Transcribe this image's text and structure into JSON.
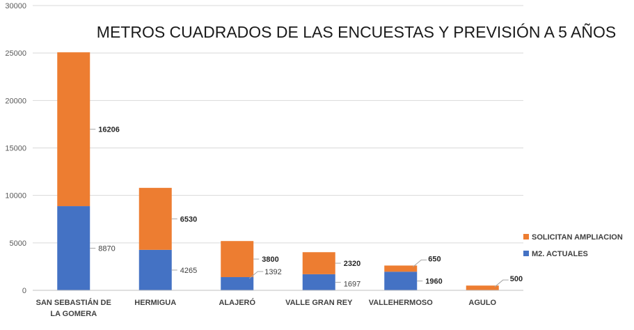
{
  "chart_data": {
    "type": "bar",
    "stacked": true,
    "title": "METROS CUADRADOS DE LAS ENCUESTAS Y PREVISIÓN A 5 AÑOS",
    "xlabel": "",
    "ylabel": "",
    "ylim": [
      0,
      30000
    ],
    "yticks": [
      "0",
      "5000",
      "10000",
      "15000",
      "20000",
      "25000",
      "30000"
    ],
    "grid": true,
    "legend_position": "right",
    "categories": [
      [
        "SAN SEBASTIÁN DE",
        "LA GOMERA"
      ],
      [
        "HERMIGUA"
      ],
      [
        "ALAJERÓ"
      ],
      [
        "VALLE GRAN REY"
      ],
      [
        "VALLEHERMOSO"
      ],
      [
        "AGULO"
      ]
    ],
    "series": [
      {
        "name": "M2. ACTUALES",
        "color": "#4472C4",
        "values": [
          8870,
          4265,
          1392,
          1697,
          1960,
          0
        ],
        "labels": [
          "8870",
          "4265",
          "1392",
          "1697",
          "1960",
          ""
        ],
        "label_bold": [
          false,
          false,
          false,
          false,
          true,
          false
        ]
      },
      {
        "name": "SOLICITAN AMPLIACION",
        "color": "#ED7D31",
        "values": [
          16206,
          6530,
          3800,
          2320,
          650,
          500
        ],
        "labels": [
          "16206",
          "6530",
          "3800",
          "2320",
          "650",
          "500"
        ],
        "label_bold": [
          true,
          true,
          true,
          true,
          true,
          true
        ]
      }
    ],
    "legend": [
      {
        "name": "SOLICITAN AMPLIACION",
        "color": "#ED7D31"
      },
      {
        "name": "M2. ACTUALES",
        "color": "#4472C4"
      }
    ]
  }
}
